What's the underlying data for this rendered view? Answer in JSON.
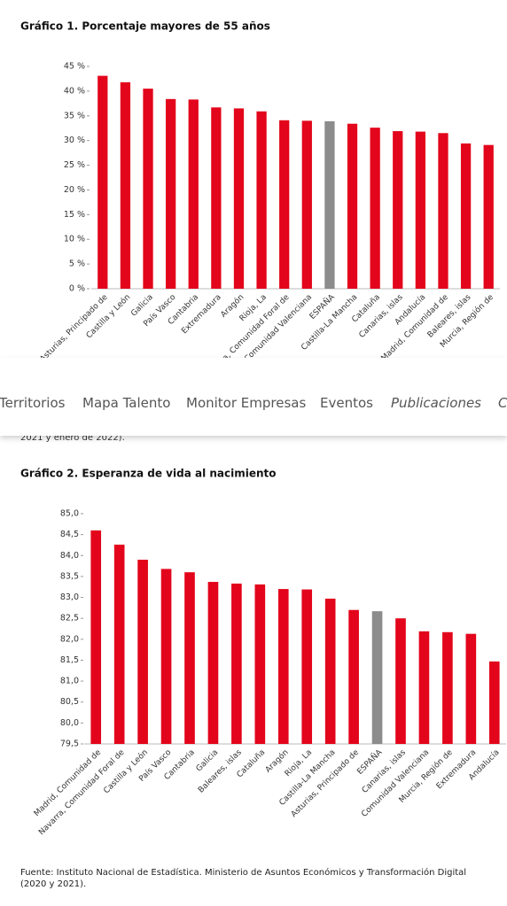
{
  "chart_data": [
    {
      "type": "bar",
      "title": "Gráfico 1. Porcentaje mayores de 55 años",
      "categories": [
        "Asturias, Principado de",
        "Castilla y León",
        "Galicia",
        "País Vasco",
        "Cantabria",
        "Extremadura",
        "Aragón",
        "Rioja, La",
        "Navarra, Comunidad Foral de",
        "Comunidad Valenciana",
        "ESPAÑA",
        "Castilla-La Mancha",
        "Cataluña",
        "Canarias, islas",
        "Andalucía",
        "Madrid, Comunidad de",
        "Baleares, islas",
        "Murcia, Región de"
      ],
      "values": [
        43.1,
        41.8,
        40.5,
        38.4,
        38.3,
        36.7,
        36.5,
        35.9,
        34.1,
        34.0,
        33.9,
        33.4,
        32.6,
        31.9,
        31.8,
        31.5,
        29.4,
        29.1
      ],
      "colors": [
        "#e3051b",
        "#e3051b",
        "#e3051b",
        "#e3051b",
        "#e3051b",
        "#e3051b",
        "#e3051b",
        "#e3051b",
        "#e3051b",
        "#e3051b",
        "#8c8c8c",
        "#e3051b",
        "#e3051b",
        "#e3051b",
        "#e3051b",
        "#e3051b",
        "#e3051b",
        "#e3051b"
      ],
      "ylim": [
        0,
        45
      ],
      "yticks": [
        {
          "value": 0,
          "label": "0 %"
        },
        {
          "value": 5,
          "label": "5 %"
        },
        {
          "value": 10,
          "label": "10 %"
        },
        {
          "value": 15,
          "label": "15 %"
        },
        {
          "value": 20,
          "label": "20 %"
        },
        {
          "value": 25,
          "label": "25 %"
        },
        {
          "value": 30,
          "label": "30 %"
        },
        {
          "value": 35,
          "label": "35 %"
        },
        {
          "value": 40,
          "label": "40 %"
        },
        {
          "value": 45,
          "label": "45 %"
        }
      ],
      "grid": false
    },
    {
      "type": "bar",
      "title": "Gráfico 2. Esperanza de vida al nacimiento",
      "categories": [
        "Madrid, Comunidad de",
        "Navarra, Comunidad Foral de",
        "Castilla y León",
        "País Vasco",
        "Cantabria",
        "Galicia",
        "Baleares, islas",
        "Cataluña",
        "Aragón",
        "Rioja, La",
        "Castilla-La Mancha",
        "Asturias, Principado de",
        "ESPAÑA",
        "Canarias, islas",
        "Comunidad Valenciana",
        "Murcia, Región de",
        "Extremadura",
        "Andalucía"
      ],
      "values": [
        84.6,
        84.26,
        83.9,
        83.68,
        83.6,
        83.37,
        83.33,
        83.31,
        83.2,
        83.19,
        82.97,
        82.7,
        82.67,
        82.5,
        82.19,
        82.17,
        82.13,
        81.47
      ],
      "colors": [
        "#e3051b",
        "#e3051b",
        "#e3051b",
        "#e3051b",
        "#e3051b",
        "#e3051b",
        "#e3051b",
        "#e3051b",
        "#e3051b",
        "#e3051b",
        "#e3051b",
        "#e3051b",
        "#8c8c8c",
        "#e3051b",
        "#e3051b",
        "#e3051b",
        "#e3051b",
        "#e3051b"
      ],
      "ylim": [
        79.5,
        85.0
      ],
      "yticks": [
        {
          "value": 79.5,
          "label": "79,5"
        },
        {
          "value": 80.0,
          "label": "80,0"
        },
        {
          "value": 80.5,
          "label": "80,5"
        },
        {
          "value": 81.0,
          "label": "81,0"
        },
        {
          "value": 81.5,
          "label": "81,5"
        },
        {
          "value": 82.0,
          "label": "82,0"
        },
        {
          "value": 82.5,
          "label": "82,5"
        },
        {
          "value": 83.0,
          "label": "83,0"
        },
        {
          "value": 83.5,
          "label": "83,5"
        },
        {
          "value": 84.0,
          "label": "84,0"
        },
        {
          "value": 84.5,
          "label": "84,5"
        },
        {
          "value": 85.0,
          "label": "85,0"
        }
      ],
      "grid": false
    }
  ],
  "nav": {
    "items": [
      "Territorios",
      "Mapa Talento",
      "Monitor Empresas",
      "Eventos",
      "Publicaciones",
      "C"
    ]
  },
  "snippet": "2021 y enero de 2022).",
  "source": "Fuente: Instituto Nacional de Estadística. Ministerio de Asuntos Económicos y Transformación Digital (2020 y 2021)."
}
